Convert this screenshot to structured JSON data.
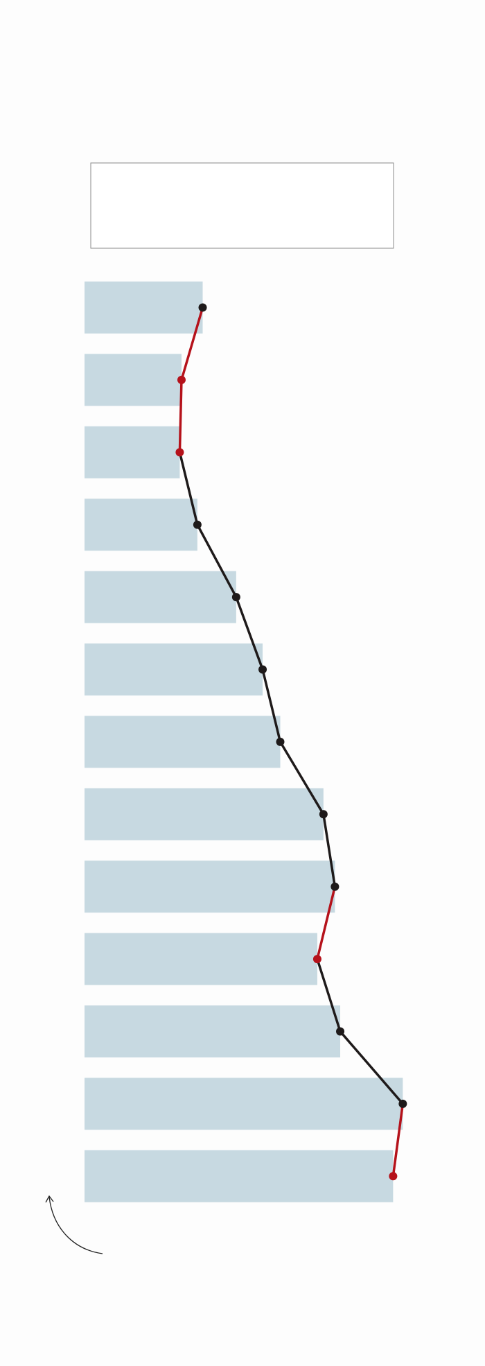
{
  "chart_data": {
    "type": "bar-line",
    "values": [
      134,
      110,
      108,
      128,
      172,
      202,
      222,
      271,
      284,
      264,
      290,
      361,
      350
    ],
    "xlim": [
      0,
      400
    ],
    "bar_color": "#c7d9e1",
    "up_color": "#1e1a1a",
    "down_color": "#b5121b"
  }
}
